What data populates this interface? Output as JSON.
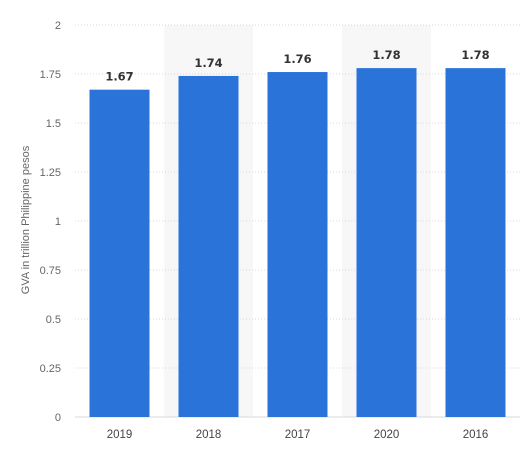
{
  "chart_data": {
    "type": "bar",
    "categories": [
      "2019",
      "2018",
      "2017",
      "2020",
      "2016"
    ],
    "values": [
      1.67,
      1.74,
      1.76,
      1.78,
      1.78
    ],
    "value_labels": [
      "1.67",
      "1.74",
      "1.76",
      "1.78",
      "1.78"
    ],
    "title": "",
    "xlabel": "",
    "ylabel": "GVA in trillion Philippine pesos",
    "ylim": [
      0,
      2
    ],
    "yticks": [
      0,
      0.25,
      0.5,
      0.75,
      1,
      1.25,
      1.5,
      1.75,
      2
    ],
    "ytick_labels": [
      "0",
      "0.25",
      "0.5",
      "0.75",
      "1",
      "1.25",
      "1.5",
      "1.75",
      "2"
    ],
    "grid": true,
    "legend": "none",
    "colors": {
      "bar": "#2a73d9",
      "grid": "#d9d9d9",
      "band": "#f7f7f7"
    }
  }
}
